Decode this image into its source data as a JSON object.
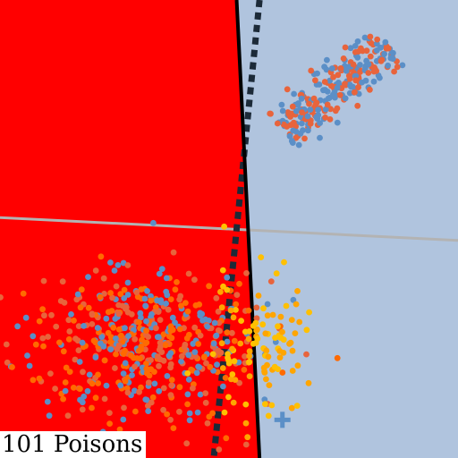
{
  "caption": "101 Poisons",
  "chart_data": {
    "type": "scatter",
    "title": "",
    "xlabel": "",
    "ylabel": "",
    "xlim": [
      -6,
      6
    ],
    "ylim": [
      -6,
      6
    ],
    "grid": false,
    "legend": "none",
    "regions": [
      {
        "name": "class-a-region",
        "color": "#ff0000"
      },
      {
        "name": "class-b-region",
        "color": "#b0c4de"
      }
    ],
    "boundaries": [
      {
        "name": "clean-boundary",
        "style": "solid",
        "color": "#000000",
        "points": [
          [
            0.2,
            6
          ],
          [
            0.8,
            -6
          ]
        ]
      },
      {
        "name": "poisoned-boundary",
        "style": "dotted",
        "color": "#1c2a38",
        "points": [
          [
            0.8,
            6
          ],
          [
            -0.4,
            -6
          ]
        ]
      },
      {
        "name": "reference-line",
        "style": "solid",
        "color": "#b3b3b3",
        "points": [
          [
            -6,
            0.3
          ],
          [
            6,
            -0.3
          ]
        ]
      }
    ],
    "clusters": [
      {
        "name": "class-b-cluster",
        "shape": "elongated",
        "center": [
          2.8,
          3.7
        ],
        "axis": [
          1.0,
          0.85
        ],
        "length": 3.6,
        "width": 0.3,
        "colors": [
          "#5b8fc7",
          "#e8643c"
        ],
        "count": 260
      },
      {
        "name": "class-a-cluster",
        "shape": "blob",
        "center": [
          -2.4,
          -3.0
        ],
        "spread": [
          1.6,
          1.0
        ],
        "colors": [
          "#ff6a00",
          "#e8643c",
          "#5b8fc7"
        ],
        "count": 520
      },
      {
        "name": "poison-points",
        "shape": "blob",
        "center": [
          0.8,
          -3.1
        ],
        "spread": [
          0.6,
          0.9
        ],
        "colors": [
          "#ffc000",
          "#ffa500"
        ],
        "count": 101
      }
    ],
    "markers": [
      {
        "name": "target-point",
        "shape": "plus",
        "color": "#5b8fc7",
        "x": 1.4,
        "y": -5.0
      }
    ]
  }
}
